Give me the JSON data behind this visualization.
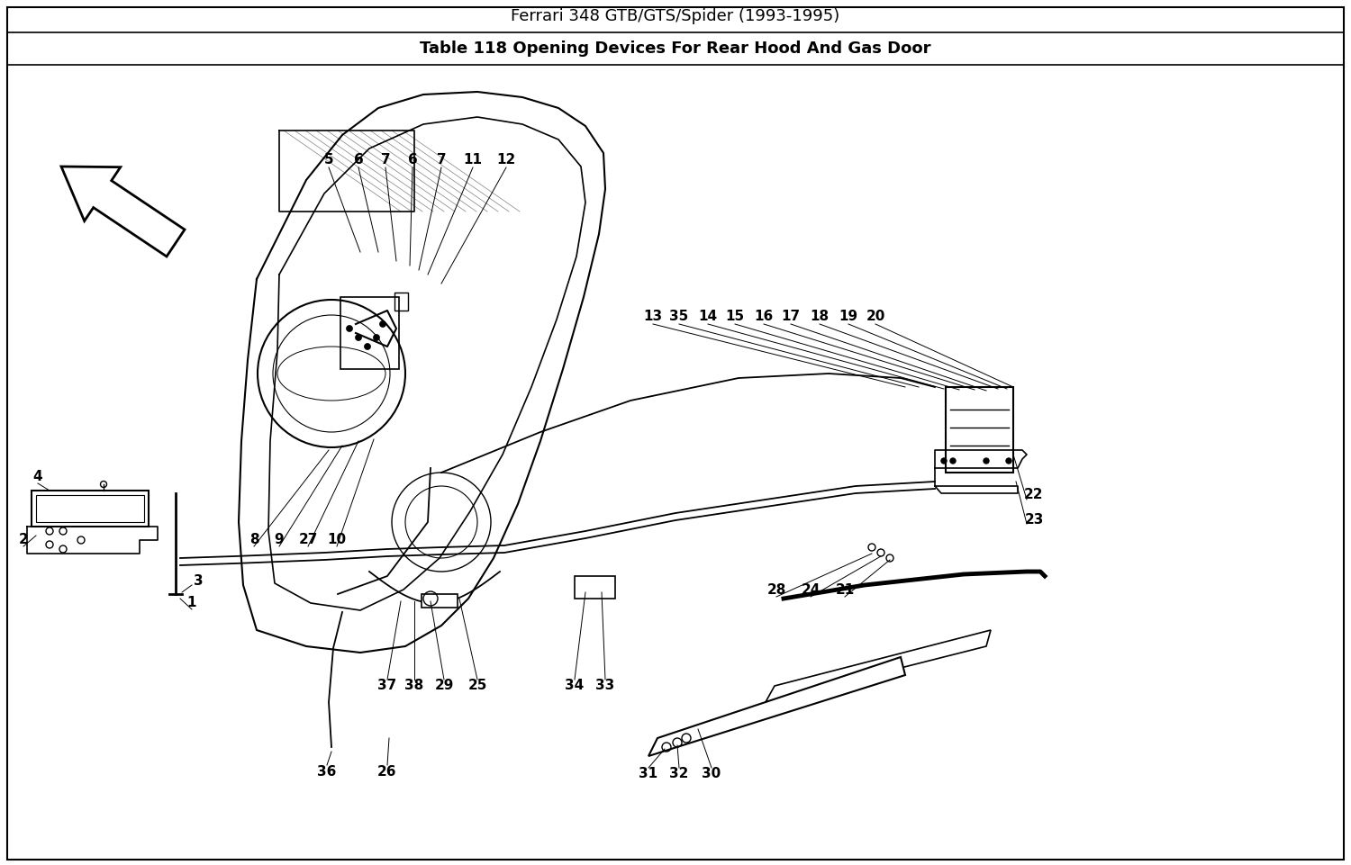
{
  "title_line1": "Ferrari 348 GTB/GTS/Spider (1993-1995)",
  "title_line2": "Table 118 Opening Devices For Rear Hood And Gas Door",
  "bg_color": "#ffffff",
  "border_color": "#000000",
  "title1_fontsize": 13,
  "title2_fontsize": 13,
  "fig_width": 15.0,
  "fig_height": 9.61,
  "dpi": 100
}
